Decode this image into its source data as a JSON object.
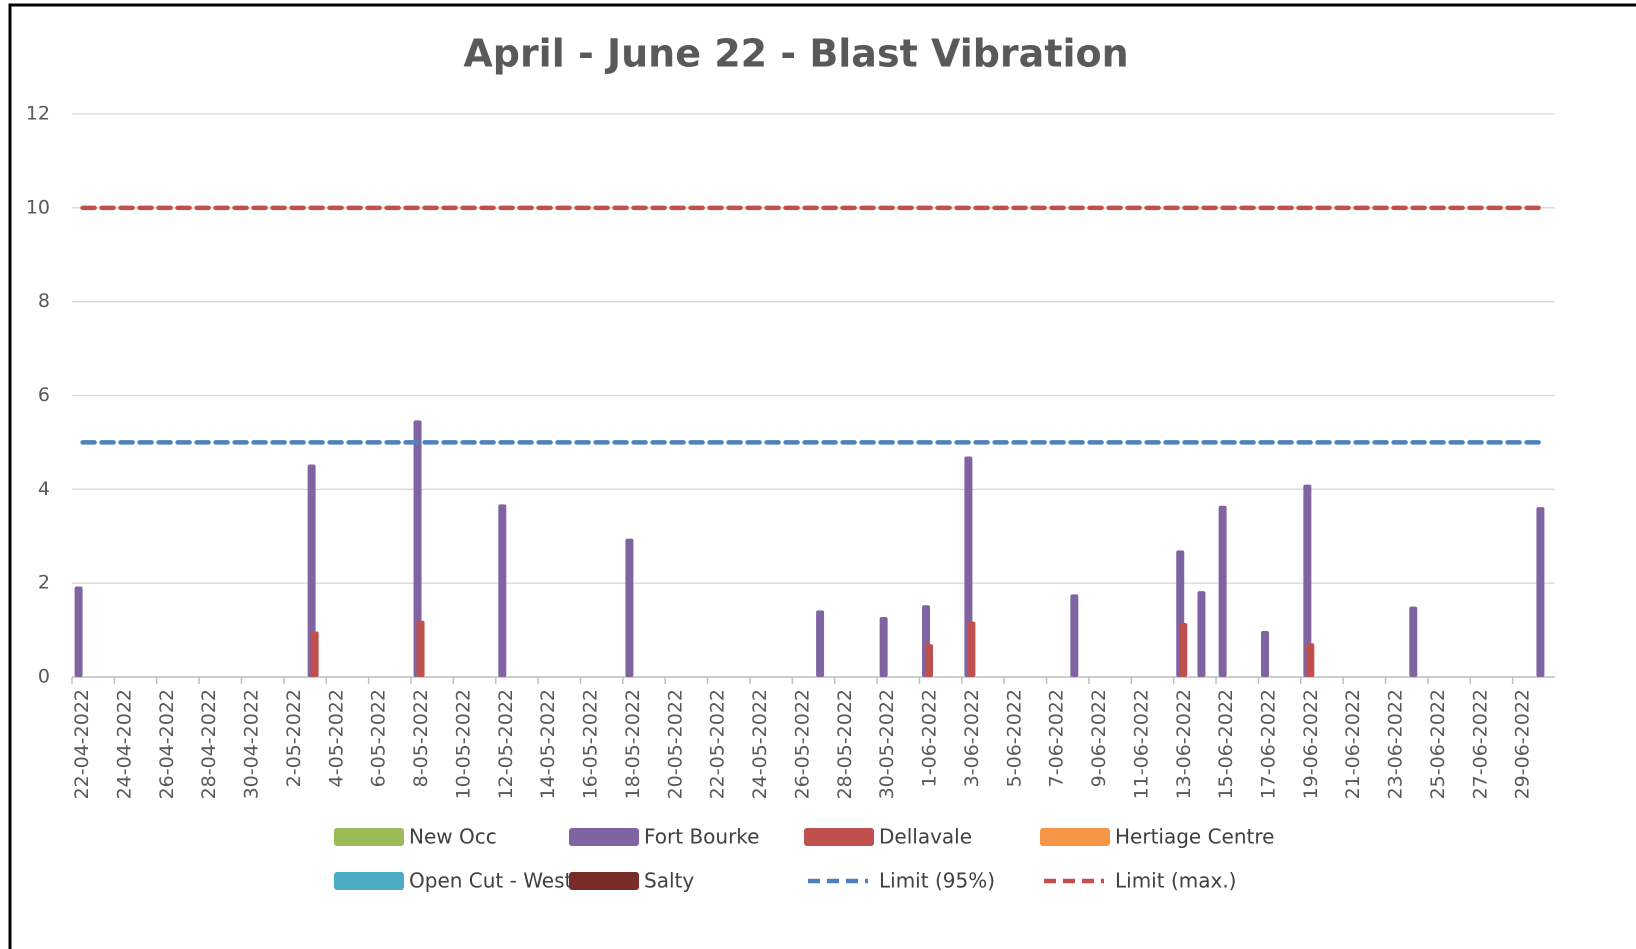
{
  "chart_data": {
    "type": "bar",
    "title": "April - June 22 - Blast Vibration",
    "categories": [
      "22-04-2022",
      null,
      "24-04-2022",
      null,
      "26-04-2022",
      null,
      "28-04-2022",
      null,
      "30-04-2022",
      null,
      "2-05-2022",
      null,
      "4-05-2022",
      null,
      "6-05-2022",
      null,
      "8-05-2022",
      null,
      "10-05-2022",
      null,
      "12-05-2022",
      null,
      "14-05-2022",
      null,
      "16-05-2022",
      null,
      "18-05-2022",
      null,
      "20-05-2022",
      null,
      "22-05-2022",
      null,
      "24-05-2022",
      null,
      "26-05-2022",
      null,
      "28-05-2022",
      null,
      "30-05-2022",
      null,
      "1-06-2022",
      null,
      "3-06-2022",
      null,
      "5-06-2022",
      null,
      "7-06-2022",
      null,
      "9-06-2022",
      null,
      "11-06-2022",
      null,
      "13-06-2022",
      null,
      "15-06-2022",
      null,
      "17-06-2022",
      null,
      "19-06-2022",
      null,
      "21-06-2022",
      null,
      "23-06-2022",
      null,
      "25-06-2022",
      null,
      "27-06-2022",
      null,
      "29-06-2022",
      null
    ],
    "series": [
      {
        "name": "New Occ",
        "color": "#9bbb59",
        "values": [
          null,
          null,
          null,
          null,
          null,
          null,
          null,
          null,
          null,
          null,
          null,
          null,
          null,
          null,
          null,
          null,
          null,
          null,
          null,
          null,
          null,
          null,
          null,
          null,
          null,
          null,
          null,
          null,
          null,
          null,
          null,
          null,
          null,
          null,
          null,
          null,
          null,
          null,
          null,
          null,
          null,
          null,
          null,
          null,
          null,
          null,
          null,
          null,
          null,
          null,
          null,
          null,
          null,
          null,
          null,
          null,
          null,
          null,
          null,
          null,
          null,
          null,
          null,
          null,
          null,
          null,
          null,
          null,
          null,
          null
        ]
      },
      {
        "name": "Fort Bourke",
        "color": "#8064a2",
        "values": [
          1.93,
          null,
          null,
          null,
          null,
          null,
          null,
          null,
          null,
          null,
          null,
          4.53,
          null,
          null,
          null,
          null,
          5.47,
          null,
          null,
          null,
          3.68,
          null,
          null,
          null,
          null,
          null,
          2.95,
          null,
          null,
          null,
          null,
          null,
          null,
          null,
          null,
          1.42,
          null,
          null,
          1.28,
          null,
          1.53,
          null,
          4.7,
          null,
          null,
          null,
          null,
          1.76,
          null,
          null,
          null,
          null,
          2.7,
          1.83,
          3.65,
          null,
          0.98,
          null,
          4.1,
          null,
          null,
          null,
          null,
          1.5,
          null,
          null,
          null,
          null,
          null,
          3.62
        ]
      },
      {
        "name": "Dellavale",
        "color": "#c0504d",
        "values": [
          null,
          null,
          null,
          null,
          null,
          null,
          null,
          null,
          null,
          null,
          null,
          0.97,
          null,
          null,
          null,
          null,
          1.2,
          null,
          null,
          null,
          null,
          null,
          null,
          null,
          null,
          null,
          null,
          null,
          null,
          null,
          null,
          null,
          null,
          null,
          null,
          null,
          null,
          null,
          null,
          null,
          0.7,
          null,
          1.18,
          null,
          null,
          null,
          null,
          null,
          null,
          null,
          null,
          null,
          1.15,
          null,
          null,
          null,
          null,
          null,
          0.72,
          null,
          null,
          null,
          null,
          null,
          null,
          null,
          null,
          null,
          null,
          null
        ]
      },
      {
        "name": "Hertiage Centre",
        "color": "#f79646",
        "values": [
          null,
          null,
          null,
          null,
          null,
          null,
          null,
          null,
          null,
          null,
          null,
          null,
          null,
          null,
          null,
          null,
          null,
          null,
          null,
          null,
          null,
          null,
          null,
          null,
          null,
          null,
          null,
          null,
          null,
          null,
          null,
          null,
          null,
          null,
          null,
          null,
          null,
          null,
          null,
          null,
          null,
          null,
          null,
          null,
          null,
          null,
          null,
          null,
          null,
          null,
          null,
          null,
          null,
          null,
          null,
          null,
          null,
          null,
          null,
          null,
          null,
          null,
          null,
          null,
          null,
          null,
          null,
          null,
          null,
          null
        ]
      },
      {
        "name": "Open Cut - West",
        "color": "#4bacc6",
        "values": [
          null,
          null,
          null,
          null,
          null,
          null,
          null,
          null,
          null,
          null,
          null,
          null,
          null,
          null,
          null,
          null,
          null,
          null,
          null,
          null,
          null,
          null,
          null,
          null,
          null,
          null,
          null,
          null,
          null,
          null,
          null,
          null,
          null,
          null,
          null,
          null,
          null,
          null,
          null,
          null,
          null,
          null,
          null,
          null,
          null,
          null,
          null,
          null,
          null,
          null,
          null,
          null,
          null,
          null,
          null,
          null,
          null,
          null,
          null,
          null,
          null,
          null,
          null,
          null,
          null,
          null,
          null,
          null,
          null,
          null
        ]
      },
      {
        "name": "Salty",
        "color": "#772c2a",
        "values": [
          null,
          null,
          null,
          null,
          null,
          null,
          null,
          null,
          null,
          null,
          null,
          null,
          null,
          null,
          null,
          null,
          null,
          null,
          null,
          null,
          null,
          null,
          null,
          null,
          null,
          null,
          null,
          null,
          null,
          null,
          null,
          null,
          null,
          null,
          null,
          null,
          null,
          null,
          null,
          null,
          null,
          null,
          null,
          null,
          null,
          null,
          null,
          null,
          null,
          null,
          null,
          null,
          null,
          null,
          null,
          null,
          null,
          null,
          null,
          null,
          null,
          null,
          null,
          null,
          null,
          null,
          null,
          null,
          null,
          null
        ]
      },
      {
        "name": "Limit (95%)",
        "color": "#4f81bd",
        "type": "line",
        "style": "dashed",
        "values": [
          5,
          5,
          5,
          5,
          5,
          5,
          5,
          5,
          5,
          5,
          5,
          5,
          5,
          5,
          5,
          5,
          5,
          5,
          5,
          5,
          5,
          5,
          5,
          5,
          5,
          5,
          5,
          5,
          5,
          5,
          5,
          5,
          5,
          5,
          5,
          5,
          5,
          5,
          5,
          5,
          5,
          5,
          5,
          5,
          5,
          5,
          5,
          5,
          5,
          5,
          5,
          5,
          5,
          5,
          5,
          5,
          5,
          5,
          5,
          5,
          5,
          5,
          5,
          5,
          5,
          5,
          5,
          5,
          5,
          5
        ]
      },
      {
        "name": "Limit (max.)",
        "color": "#c0504d",
        "type": "line",
        "style": "dashed",
        "values": [
          10,
          10,
          10,
          10,
          10,
          10,
          10,
          10,
          10,
          10,
          10,
          10,
          10,
          10,
          10,
          10,
          10,
          10,
          10,
          10,
          10,
          10,
          10,
          10,
          10,
          10,
          10,
          10,
          10,
          10,
          10,
          10,
          10,
          10,
          10,
          10,
          10,
          10,
          10,
          10,
          10,
          10,
          10,
          10,
          10,
          10,
          10,
          10,
          10,
          10,
          10,
          10,
          10,
          10,
          10,
          10,
          10,
          10,
          10,
          10,
          10,
          10,
          10,
          10,
          10,
          10,
          10,
          10,
          10,
          10
        ]
      }
    ],
    "ylim": [
      0,
      12
    ],
    "yticks": [
      0,
      2,
      4,
      6,
      8,
      10,
      12
    ],
    "grid": true,
    "legend": "bottom"
  }
}
